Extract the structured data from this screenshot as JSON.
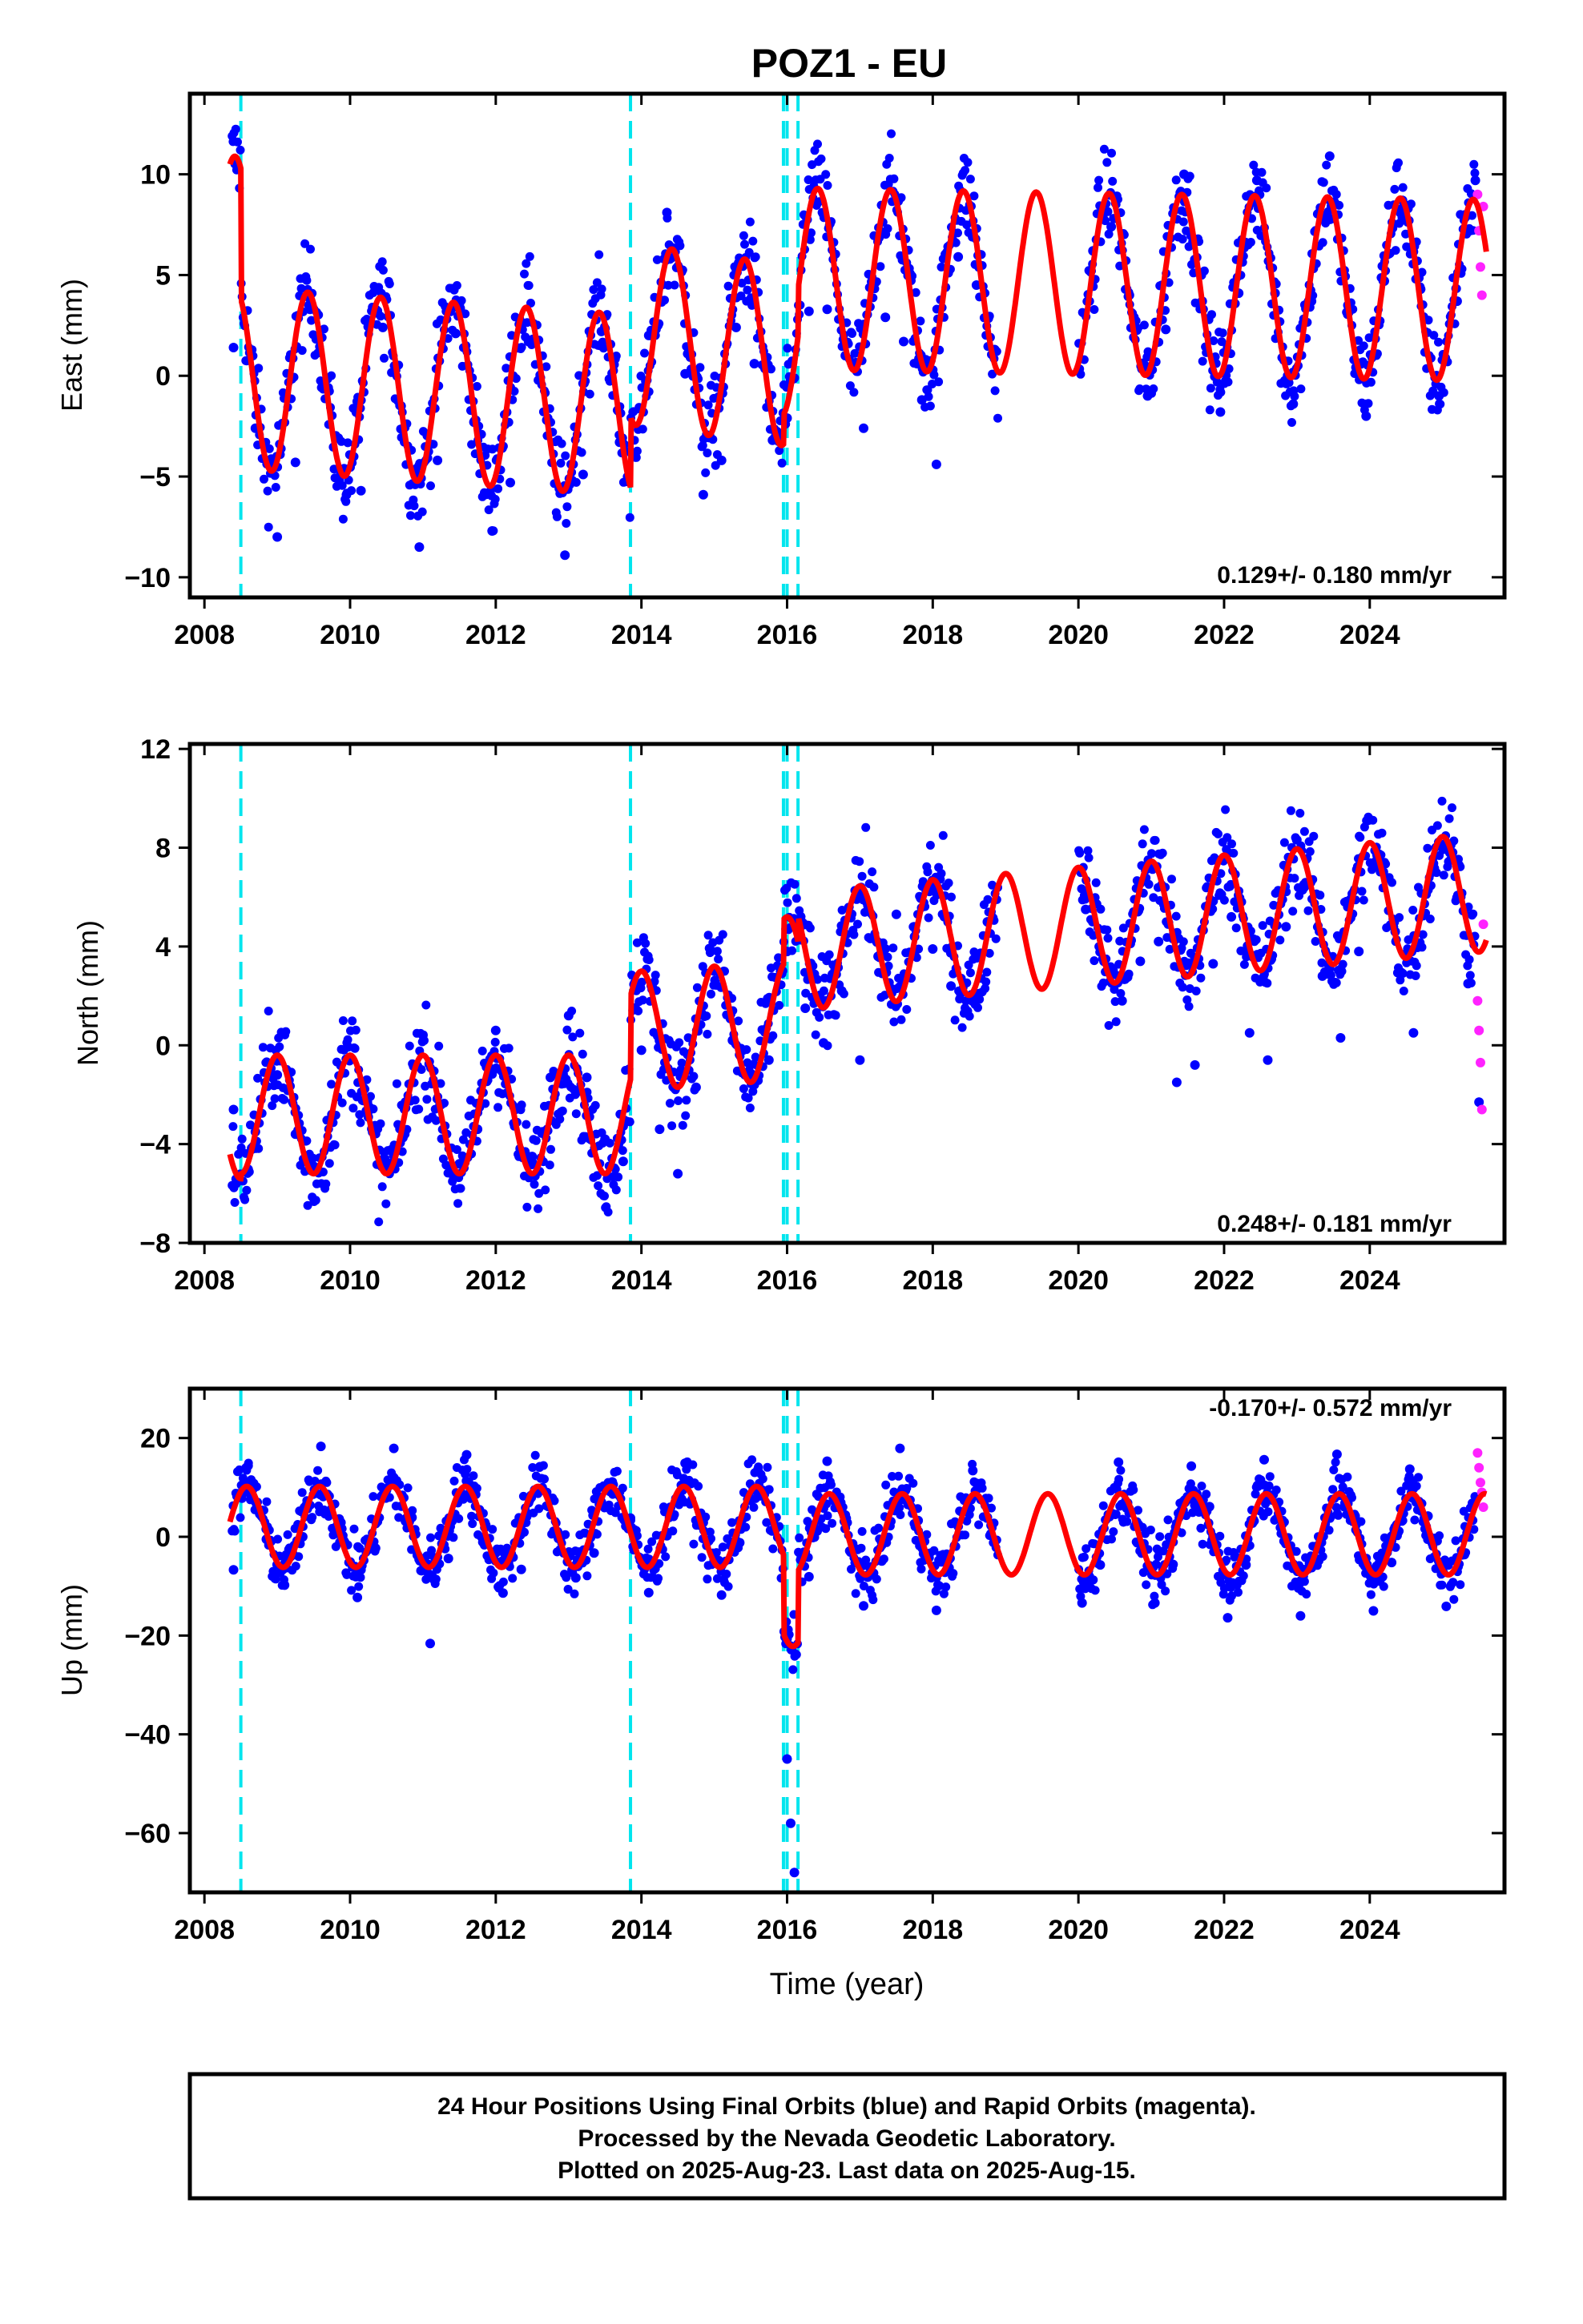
{
  "title": "POZ1 - EU",
  "xlabel": "Time (year)",
  "footer": [
    "24 Hour Positions Using Final Orbits (blue) and Rapid Orbits (magenta).",
    "Processed by the Nevada Geodetic Laboratory.",
    "Plotted on 2025-Aug-23. Last data on 2025-Aug-15."
  ],
  "colors": {
    "final": "#0000ff",
    "rapid": "#ff22ff",
    "model": "#ff0000",
    "steps": "#00e5ee",
    "frame": "#000000"
  },
  "chart_data": [
    {
      "type": "scatter",
      "component": "east",
      "ylabel": "East (mm)",
      "rate": "0.129+/- 0.180 mm/yr",
      "rate_position": "bottom-right",
      "xlim": [
        2007.8,
        2025.85
      ],
      "ylim": [
        -11,
        14
      ],
      "xticks": [
        2008,
        2010,
        2012,
        2014,
        2016,
        2018,
        2020,
        2022,
        2024
      ],
      "xticklabels": [
        "2008",
        "2010",
        "2012",
        "2014",
        "2016",
        "2018",
        "2020",
        "2022",
        "2024"
      ],
      "yticks": [
        -10,
        -5,
        0,
        5,
        10
      ],
      "yticklabels": [
        "−10",
        "−5",
        "0",
        "5",
        "10"
      ],
      "model": {
        "amplitude_mm": 4.5,
        "peak_phase_year": 0.42,
        "pieces": [
          {
            "start": 2008.35,
            "end": 2008.5,
            "intercept": 6.6,
            "slope": -0.5
          },
          {
            "start": 2008.5,
            "end": 2013.85,
            "intercept": 0.0,
            "slope": -0.25
          },
          {
            "start": 2013.85,
            "end": 2015.95,
            "intercept": 5.0,
            "slope": -0.5
          },
          {
            "start": 2015.95,
            "end": 2016.15,
            "intercept": 2.5,
            "slope": 0.0
          },
          {
            "start": 2016.15,
            "end": 2025.6,
            "intercept": 5.3,
            "slope": -0.06
          }
        ]
      },
      "final_points": [
        [
          2008.4,
          1.4
        ],
        [
          2008.7,
          -2.6
        ],
        [
          2009.0,
          -8.0
        ],
        [
          2009.25,
          -4.3
        ],
        [
          2009.45,
          3.3
        ],
        [
          2009.7,
          -0.6
        ],
        [
          2009.95,
          -5.9
        ],
        [
          2010.15,
          -5.7
        ],
        [
          2010.45,
          2.4
        ],
        [
          2010.7,
          -1.5
        ],
        [
          2010.95,
          -8.5
        ],
        [
          2011.2,
          -4.2
        ],
        [
          2011.45,
          2.1
        ],
        [
          2011.7,
          -2.3
        ],
        [
          2011.95,
          -7.7
        ],
        [
          2012.2,
          -5.3
        ],
        [
          2012.45,
          1.7
        ],
        [
          2012.7,
          -2.2
        ],
        [
          2012.95,
          -8.9
        ],
        [
          2013.2,
          -4.9
        ],
        [
          2013.45,
          2.2
        ],
        [
          2013.7,
          -3.3
        ],
        [
          2014.1,
          2.0
        ],
        [
          2014.35,
          8.1
        ],
        [
          2014.6,
          0.1
        ],
        [
          2014.85,
          -5.9
        ],
        [
          2015.1,
          -4.2
        ],
        [
          2015.3,
          2.4
        ],
        [
          2015.55,
          0.6
        ],
        [
          2015.8,
          -3.2
        ],
        [
          2016.0,
          -2.1
        ],
        [
          2016.3,
          3.2
        ],
        [
          2016.55,
          3.3
        ],
        [
          2016.8,
          1.0
        ],
        [
          2017.05,
          -2.6
        ],
        [
          2017.35,
          2.9
        ],
        [
          2017.6,
          1.7
        ],
        [
          2017.85,
          -1.2
        ],
        [
          2018.05,
          -4.4
        ],
        [
          2018.35,
          5.9
        ],
        [
          2018.6,
          4.5
        ],
        [
          2018.85,
          1.3
        ],
        [
          2020.2,
          6.2
        ],
        [
          2020.45,
          7.4
        ],
        [
          2020.7,
          4.0
        ],
        [
          2020.95,
          -1.0
        ],
        [
          2021.2,
          2.3
        ],
        [
          2021.45,
          10.0
        ],
        [
          2021.7,
          3.7
        ],
        [
          2021.95,
          -1.8
        ],
        [
          2022.2,
          4.1
        ],
        [
          2022.45,
          9.7
        ],
        [
          2022.7,
          4.1
        ],
        [
          2022.95,
          -1.4
        ],
        [
          2023.2,
          3.7
        ],
        [
          2023.45,
          10.9
        ],
        [
          2023.7,
          3.5
        ],
        [
          2023.95,
          -2.0
        ],
        [
          2024.2,
          4.7
        ],
        [
          2024.45,
          8.7
        ],
        [
          2024.7,
          4.3
        ],
        [
          2024.95,
          -1.0
        ],
        [
          2025.2,
          3.7
        ],
        [
          2025.45,
          9.7
        ]
      ],
      "rapid_points": [
        [
          2025.48,
          9.0
        ],
        [
          2025.5,
          7.2
        ],
        [
          2025.52,
          5.4
        ],
        [
          2025.54,
          4.0
        ],
        [
          2025.56,
          8.4
        ]
      ]
    },
    {
      "type": "scatter",
      "component": "north",
      "ylabel": "North (mm)",
      "rate": "0.248+/- 0.181 mm/yr",
      "rate_position": "bottom-right",
      "xlim": [
        2007.8,
        2025.85
      ],
      "ylim": [
        -8,
        12.2
      ],
      "xticks": [
        2008,
        2010,
        2012,
        2014,
        2016,
        2018,
        2020,
        2022,
        2024
      ],
      "xticklabels": [
        "2008",
        "2010",
        "2012",
        "2014",
        "2016",
        "2018",
        "2020",
        "2022",
        "2024"
      ],
      "yticks": [
        -8,
        -4,
        0,
        4,
        8,
        12
      ],
      "yticklabels": [
        "−8",
        "−4",
        "0",
        "4",
        "8",
        "12"
      ],
      "model": {
        "amplitude_mm": 2.4,
        "peak_phase_year": 0.0,
        "pieces": [
          {
            "start": 2008.35,
            "end": 2008.5,
            "intercept": -3.0,
            "slope": 0.0
          },
          {
            "start": 2008.5,
            "end": 2013.85,
            "intercept": -2.8,
            "slope": 0.0
          },
          {
            "start": 2013.85,
            "end": 2015.95,
            "intercept": -0.6,
            "slope": 0.2
          },
          {
            "start": 2015.95,
            "end": 2016.15,
            "intercept": 2.8,
            "slope": 0.0
          },
          {
            "start": 2016.15,
            "end": 2025.6,
            "intercept": 1.8,
            "slope": 0.25
          }
        ]
      },
      "final_points": [
        [
          2008.4,
          -2.6
        ],
        [
          2008.7,
          -3.5
        ],
        [
          2009.0,
          -1.2
        ],
        [
          2009.25,
          -3.6
        ],
        [
          2009.5,
          -4.9
        ],
        [
          2009.75,
          -2.8
        ],
        [
          2010.0,
          -0.6
        ],
        [
          2010.25,
          -2.9
        ],
        [
          2010.5,
          -4.8
        ],
        [
          2010.75,
          -3.6
        ],
        [
          2011.0,
          0.4
        ],
        [
          2011.25,
          -2.4
        ],
        [
          2011.5,
          -4.8
        ],
        [
          2011.75,
          -3.4
        ],
        [
          2012.0,
          0.6
        ],
        [
          2012.25,
          -2.5
        ],
        [
          2012.5,
          -4.5
        ],
        [
          2012.75,
          -1.3
        ],
        [
          2013.0,
          1.2
        ],
        [
          2013.25,
          -1.3
        ],
        [
          2013.5,
          -3.8
        ],
        [
          2013.75,
          -4.7
        ],
        [
          2014.0,
          -0.2
        ],
        [
          2014.25,
          -3.4
        ],
        [
          2014.5,
          -5.2
        ],
        [
          2014.75,
          -1.7
        ],
        [
          2015.0,
          3.0
        ],
        [
          2015.25,
          0.2
        ],
        [
          2015.5,
          -1.3
        ],
        [
          2015.75,
          -0.6
        ],
        [
          2016.0,
          3.8
        ],
        [
          2016.25,
          1.5
        ],
        [
          2016.5,
          0.1
        ],
        [
          2016.75,
          2.2
        ],
        [
          2017.0,
          -0.6
        ],
        [
          2017.25,
          3.6
        ],
        [
          2017.5,
          5.3
        ],
        [
          2017.75,
          4.4
        ],
        [
          2018.0,
          3.9
        ],
        [
          2018.25,
          2.4
        ],
        [
          2018.5,
          1.9
        ],
        [
          2018.75,
          5.0
        ],
        [
          2020.1,
          5.5
        ],
        [
          2020.35,
          3.4
        ],
        [
          2020.6,
          1.8
        ],
        [
          2020.85,
          3.4
        ],
        [
          2021.1,
          4.2
        ],
        [
          2021.35,
          -1.5
        ],
        [
          2021.6,
          -0.8
        ],
        [
          2021.85,
          3.3
        ],
        [
          2022.1,
          5.2
        ],
        [
          2022.35,
          0.5
        ],
        [
          2022.6,
          -0.6
        ],
        [
          2022.85,
          4.8
        ],
        [
          2023.1,
          6.4
        ],
        [
          2023.35,
          2.8
        ],
        [
          2023.6,
          0.3
        ],
        [
          2023.85,
          3.8
        ],
        [
          2024.1,
          7.7
        ],
        [
          2024.35,
          4.6
        ],
        [
          2024.6,
          0.5
        ],
        [
          2024.85,
          7.0
        ],
        [
          2025.1,
          7.8
        ],
        [
          2025.35,
          2.5
        ],
        [
          2025.5,
          -2.3
        ]
      ],
      "rapid_points": [
        [
          2025.48,
          1.8
        ],
        [
          2025.5,
          0.6
        ],
        [
          2025.52,
          -0.7
        ],
        [
          2025.54,
          -2.6
        ],
        [
          2025.56,
          4.9
        ]
      ]
    },
    {
      "type": "scatter",
      "component": "up",
      "ylabel": "Up (mm)",
      "rate": "-0.170+/- 0.572 mm/yr",
      "rate_position": "top-right",
      "xlim": [
        2007.8,
        2025.85
      ],
      "ylim": [
        -72,
        30
      ],
      "xticks": [
        2008,
        2010,
        2012,
        2014,
        2016,
        2018,
        2020,
        2022,
        2024
      ],
      "xticklabels": [
        "2008",
        "2010",
        "2012",
        "2014",
        "2016",
        "2018",
        "2020",
        "2022",
        "2024"
      ],
      "yticks": [
        -60,
        -40,
        -20,
        0,
        20
      ],
      "yticklabels": [
        "−60",
        "−40",
        "−20",
        "0",
        "20"
      ],
      "model": {
        "amplitude_mm": 8.2,
        "peak_phase_year": 0.58,
        "pieces": [
          {
            "start": 2008.35,
            "end": 2008.5,
            "intercept": 2.0,
            "slope": 0.0
          },
          {
            "start": 2008.5,
            "end": 2013.85,
            "intercept": 2.0,
            "slope": 0.0
          },
          {
            "start": 2013.85,
            "end": 2015.95,
            "intercept": 2.0,
            "slope": 0.0
          },
          {
            "start": 2015.95,
            "end": 2016.15,
            "intercept": -14.0,
            "slope": 0.0
          },
          {
            "start": 2016.15,
            "end": 2025.6,
            "intercept": 0.5,
            "slope": 0.0
          }
        ]
      },
      "final_points": [
        [
          2008.4,
          -6.7
        ],
        [
          2008.6,
          14.4
        ],
        [
          2008.85,
          -0.5
        ],
        [
          2009.1,
          -9.8
        ],
        [
          2009.35,
          0.0
        ],
        [
          2009.6,
          18.3
        ],
        [
          2009.85,
          3.6
        ],
        [
          2010.1,
          -12.3
        ],
        [
          2010.35,
          -2.3
        ],
        [
          2010.6,
          17.9
        ],
        [
          2010.85,
          3.9
        ],
        [
          2011.1,
          -21.6
        ],
        [
          2011.35,
          -4.4
        ],
        [
          2011.6,
          16.6
        ],
        [
          2011.85,
          1.9
        ],
        [
          2012.1,
          -11.4
        ],
        [
          2012.35,
          -6.6
        ],
        [
          2012.6,
          14.1
        ],
        [
          2012.85,
          1.0
        ],
        [
          2013.1,
          -8.3
        ],
        [
          2013.35,
          -3.3
        ],
        [
          2013.6,
          11.1
        ],
        [
          2013.85,
          3.8
        ],
        [
          2014.1,
          -11.3
        ],
        [
          2014.35,
          0.2
        ],
        [
          2014.6,
          14.9
        ],
        [
          2014.85,
          2.9
        ],
        [
          2015.1,
          -11.8
        ],
        [
          2015.35,
          -1.2
        ],
        [
          2015.6,
          13.6
        ],
        [
          2015.85,
          2.1
        ],
        [
          2016.0,
          -45.0
        ],
        [
          2016.05,
          -58.0
        ],
        [
          2016.1,
          -68.0
        ],
        [
          2016.3,
          -8.1
        ],
        [
          2016.55,
          15.3
        ],
        [
          2016.8,
          4.4
        ],
        [
          2017.05,
          -14.0
        ],
        [
          2017.3,
          -4.9
        ],
        [
          2017.55,
          17.9
        ],
        [
          2017.8,
          3.3
        ],
        [
          2018.05,
          -14.9
        ],
        [
          2018.3,
          -1.8
        ],
        [
          2018.55,
          13.4
        ],
        [
          2018.8,
          2.3
        ],
        [
          2020.05,
          -13.4
        ],
        [
          2020.3,
          -5.7
        ],
        [
          2020.55,
          15.1
        ],
        [
          2020.8,
          3.0
        ],
        [
          2021.05,
          -13.4
        ],
        [
          2021.3,
          -5.6
        ],
        [
          2021.55,
          14.3
        ],
        [
          2021.8,
          6.1
        ],
        [
          2022.05,
          -16.4
        ],
        [
          2022.3,
          -5.7
        ],
        [
          2022.55,
          15.6
        ],
        [
          2022.8,
          2.6
        ],
        [
          2023.05,
          -16.0
        ],
        [
          2023.3,
          -4.8
        ],
        [
          2023.55,
          16.7
        ],
        [
          2023.8,
          4.2
        ],
        [
          2024.05,
          -15.0
        ],
        [
          2024.3,
          -5.2
        ],
        [
          2024.55,
          13.7
        ],
        [
          2024.8,
          4.2
        ],
        [
          2025.05,
          -14.1
        ],
        [
          2025.3,
          -3.6
        ]
      ],
      "rapid_points": [
        [
          2025.48,
          17.0
        ],
        [
          2025.5,
          14.0
        ],
        [
          2025.52,
          11.0
        ],
        [
          2025.54,
          9.0
        ],
        [
          2025.56,
          6.0
        ]
      ]
    }
  ],
  "steps": [
    2008.5,
    2013.85,
    2015.95,
    2016.0,
    2016.15
  ]
}
